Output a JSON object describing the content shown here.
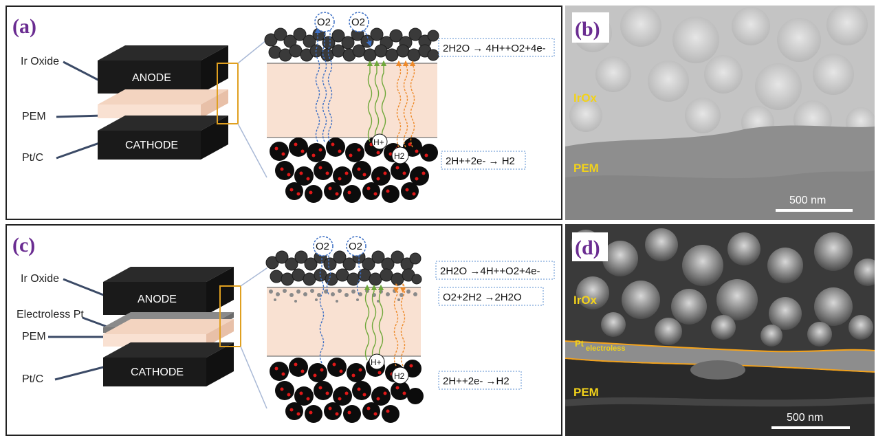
{
  "panels": {
    "a": {
      "label": "(a)",
      "layer_labels": {
        "anode_catalyst": "Ir Oxide",
        "membrane": "PEM",
        "cathode_catalyst": "Pt/C"
      },
      "block_labels": {
        "anode": "ANODE",
        "cathode": "CATHODE"
      },
      "gas_bubbles": [
        "O2",
        "O2"
      ],
      "proton_label": "H+",
      "hydrogen_label": "H2",
      "equations": {
        "anode": "2H2O → 4H++O2+4e-",
        "cathode": "2H++2e- → H2"
      }
    },
    "b": {
      "label": "(b)",
      "layer_irox": "IrOx",
      "layer_pem": "PEM",
      "scale_bar": "500 nm"
    },
    "c": {
      "label": "(c)",
      "layer_labels": {
        "anode_catalyst": "Ir Oxide",
        "interlayer": "Electroless Pt",
        "membrane": "PEM",
        "cathode_catalyst": "Pt/C"
      },
      "block_labels": {
        "anode": "ANODE",
        "cathode": "CATHODE"
      },
      "gas_bubbles": [
        "O2",
        "O2"
      ],
      "proton_label": "H+",
      "hydrogen_label": "H2",
      "equations": {
        "anode": "2H2O →4H++O2+4e-",
        "recombination": "O2+2H2 →2H2O",
        "cathode": "2H++2e- →H2"
      }
    },
    "d": {
      "label": "(d)",
      "layer_irox": "IrOx",
      "layer_pt_main": "Pt",
      "layer_pt_sub": "electroless",
      "layer_pem": "PEM",
      "scale_bar": "500 nm"
    }
  },
  "colors": {
    "label_purple": "#6a2c91",
    "membrane": "#f9e1d2",
    "sem_label": "#f2d21a",
    "pt_outline": "#f4a31c",
    "o2_path": "#3c6fc4",
    "h_path": "#6fa83a",
    "h2_path": "#ee8a2a",
    "eq_box_border": "#5b8fd1"
  }
}
